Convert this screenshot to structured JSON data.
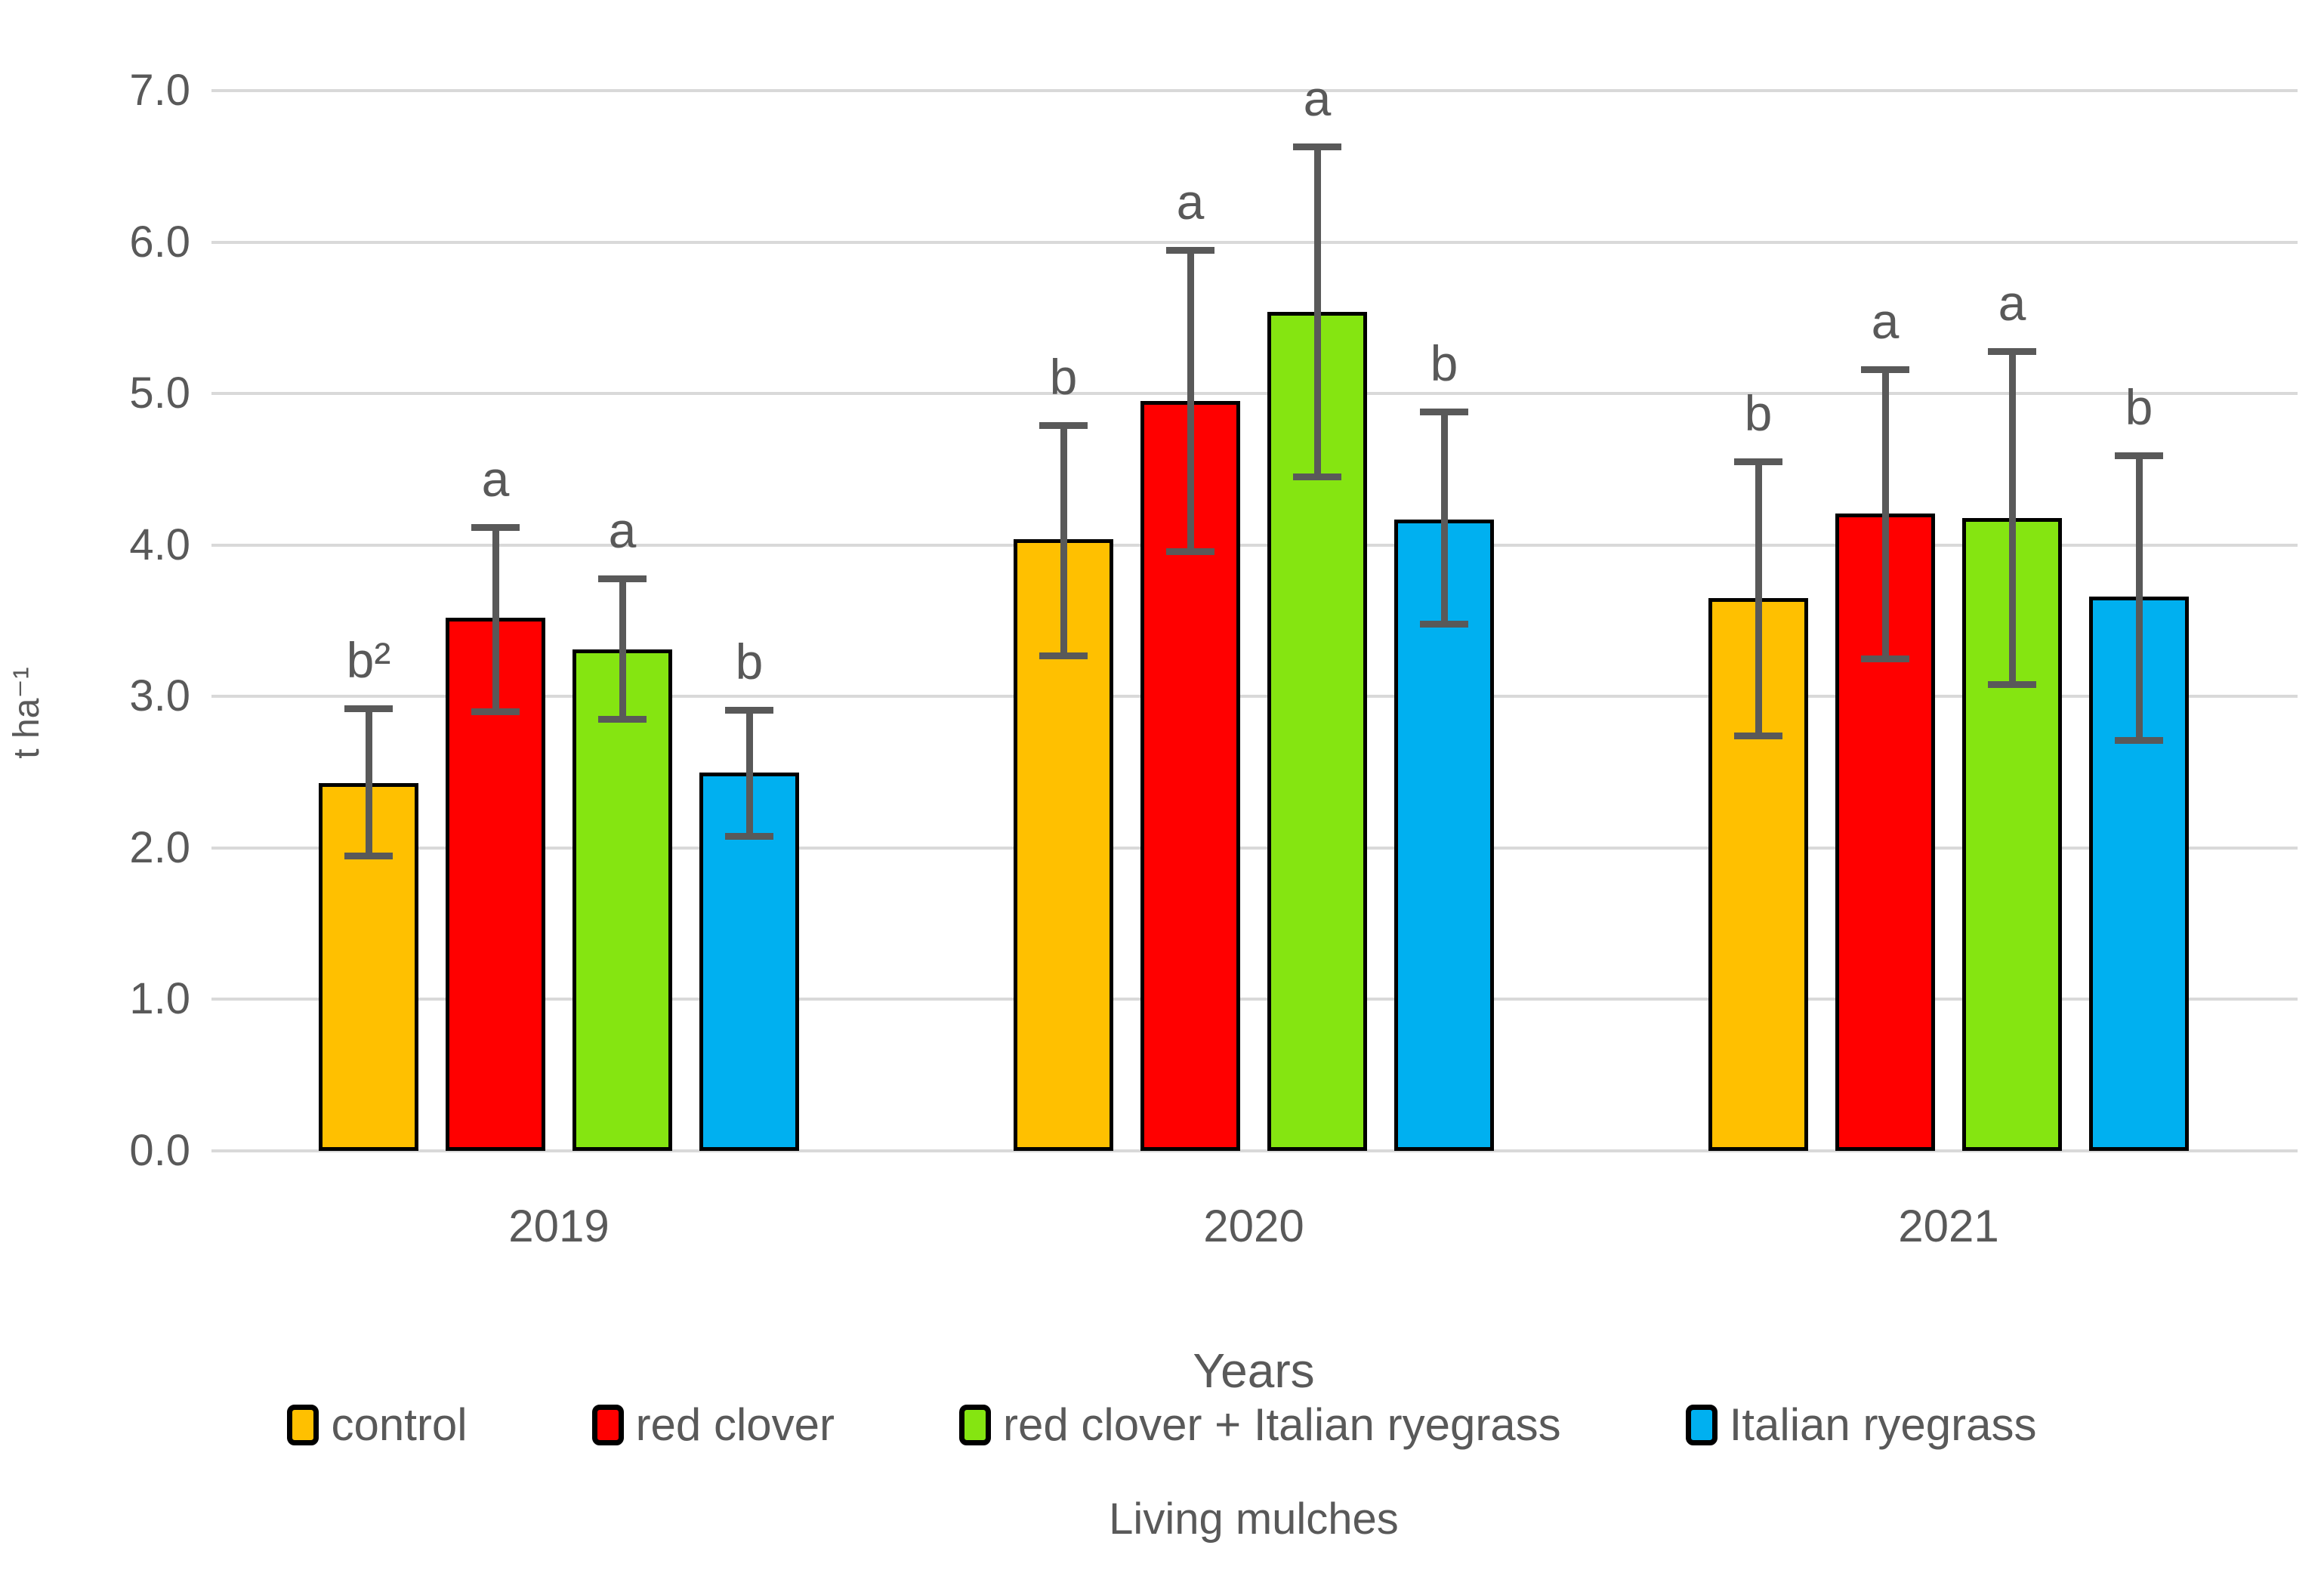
{
  "chart_data": {
    "type": "bar",
    "title": "",
    "ylabel": "t ha⁻¹",
    "xlabel": "Years",
    "x_sublabel": "Living mulches",
    "ylim": [
      0,
      7
    ],
    "ytick_step": 1.0,
    "yticks": [
      "0.0",
      "1.0",
      "2.0",
      "3.0",
      "4.0",
      "5.0",
      "6.0",
      "7.0"
    ],
    "categories": [
      "2019",
      "2020",
      "2021"
    ],
    "grid": true,
    "legend_position": "bottom",
    "colors": {
      "gridline": "#D9D9D9",
      "error_bar": "#595959",
      "text": "#595959",
      "bar_border": "#000000",
      "background": "#FFFFFF"
    },
    "series": [
      {
        "name": "control",
        "color": "#FFC000",
        "values": [
          2.43,
          4.04,
          3.65
        ],
        "error_low": [
          1.95,
          3.27,
          2.74
        ],
        "error_high": [
          2.92,
          4.79,
          4.55
        ],
        "letters": [
          "b²",
          "b",
          "b"
        ]
      },
      {
        "name": "red clover",
        "color": "#FF0000",
        "values": [
          3.52,
          4.95,
          4.21
        ],
        "error_low": [
          2.9,
          3.96,
          3.25
        ],
        "error_high": [
          4.12,
          5.95,
          5.16
        ],
        "letters": [
          "a",
          "a",
          "a"
        ]
      },
      {
        "name": "red clover + Italian ryegrass",
        "color": "#85E511",
        "values": [
          3.31,
          5.54,
          4.18
        ],
        "error_low": [
          2.85,
          4.45,
          3.08
        ],
        "error_high": [
          3.78,
          6.63,
          5.28
        ],
        "letters": [
          "a",
          "a",
          "a"
        ]
      },
      {
        "name": "Italian ryegrass",
        "color": "#00B0F0",
        "values": [
          2.5,
          4.17,
          3.66
        ],
        "error_low": [
          2.08,
          3.48,
          2.71
        ],
        "error_high": [
          2.91,
          4.88,
          4.59
        ],
        "letters": [
          "b",
          "b",
          "b"
        ]
      }
    ]
  }
}
